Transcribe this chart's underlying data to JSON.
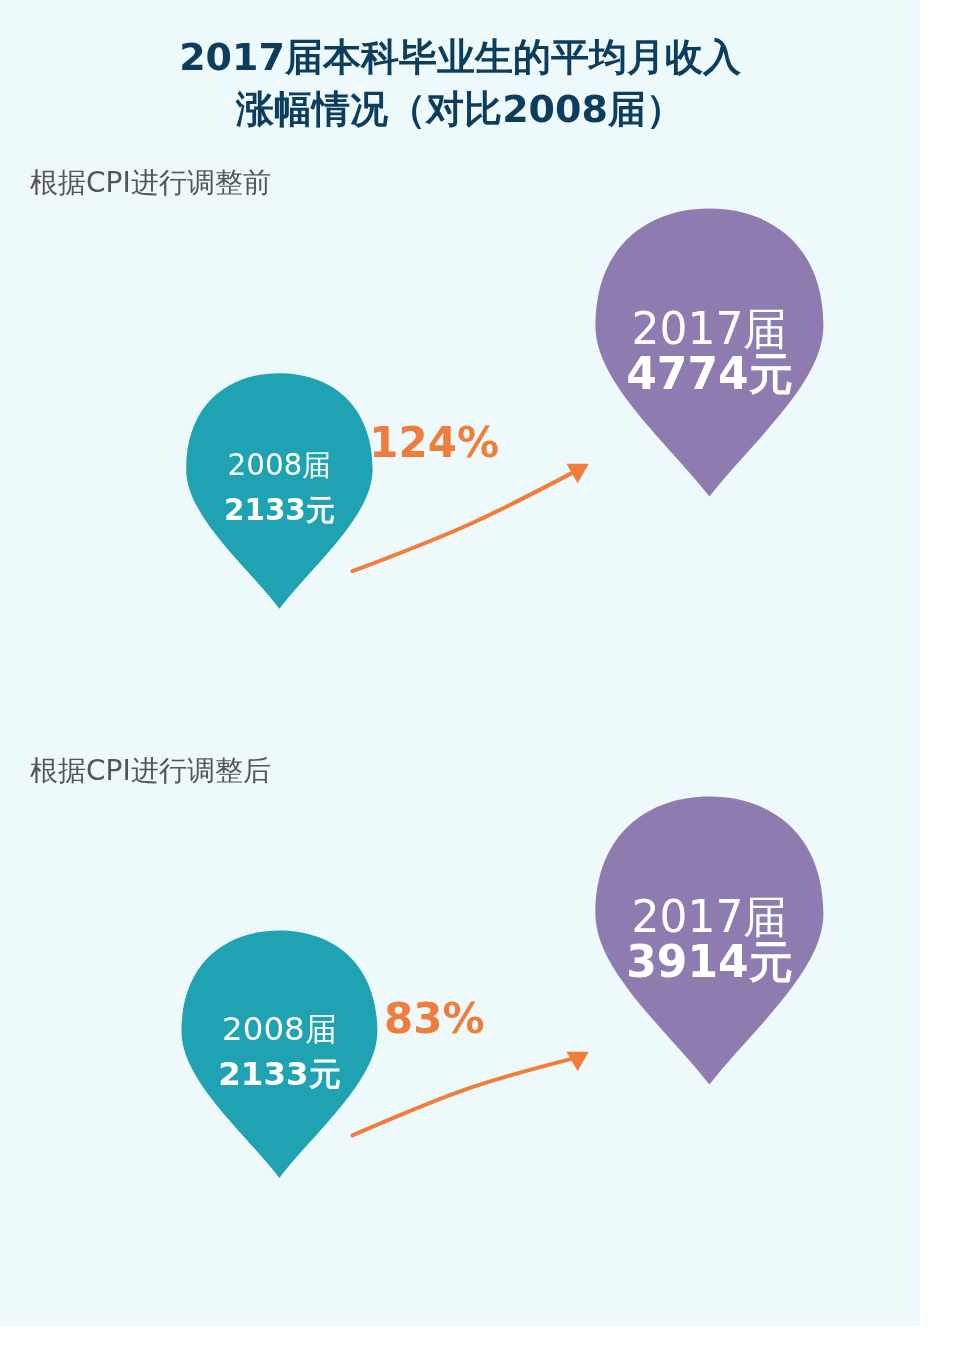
{
  "chart_data": [
    {
      "type": "other",
      "title": "2017届本科毕业生的平均月收入涨幅情况（对比2008届）",
      "subtitle": "根据CPI进行调整前",
      "categories": [
        "2008届",
        "2017届"
      ],
      "values": [
        2133,
        4774
      ],
      "value_labels": [
        "2133元",
        "4774元"
      ],
      "colors": [
        "#1fa3b3",
        "#8e7bb0"
      ],
      "annotations": [
        "124%"
      ]
    },
    {
      "type": "other",
      "subtitle": "根据CPI进行调整后",
      "categories": [
        "2008届",
        "2017届"
      ],
      "values": [
        2133,
        3914
      ],
      "value_labels": [
        "2133元",
        "3914元"
      ],
      "colors": [
        "#1fa3b3",
        "#8e7bb0"
      ],
      "annotations": [
        "83%"
      ]
    }
  ]
}
